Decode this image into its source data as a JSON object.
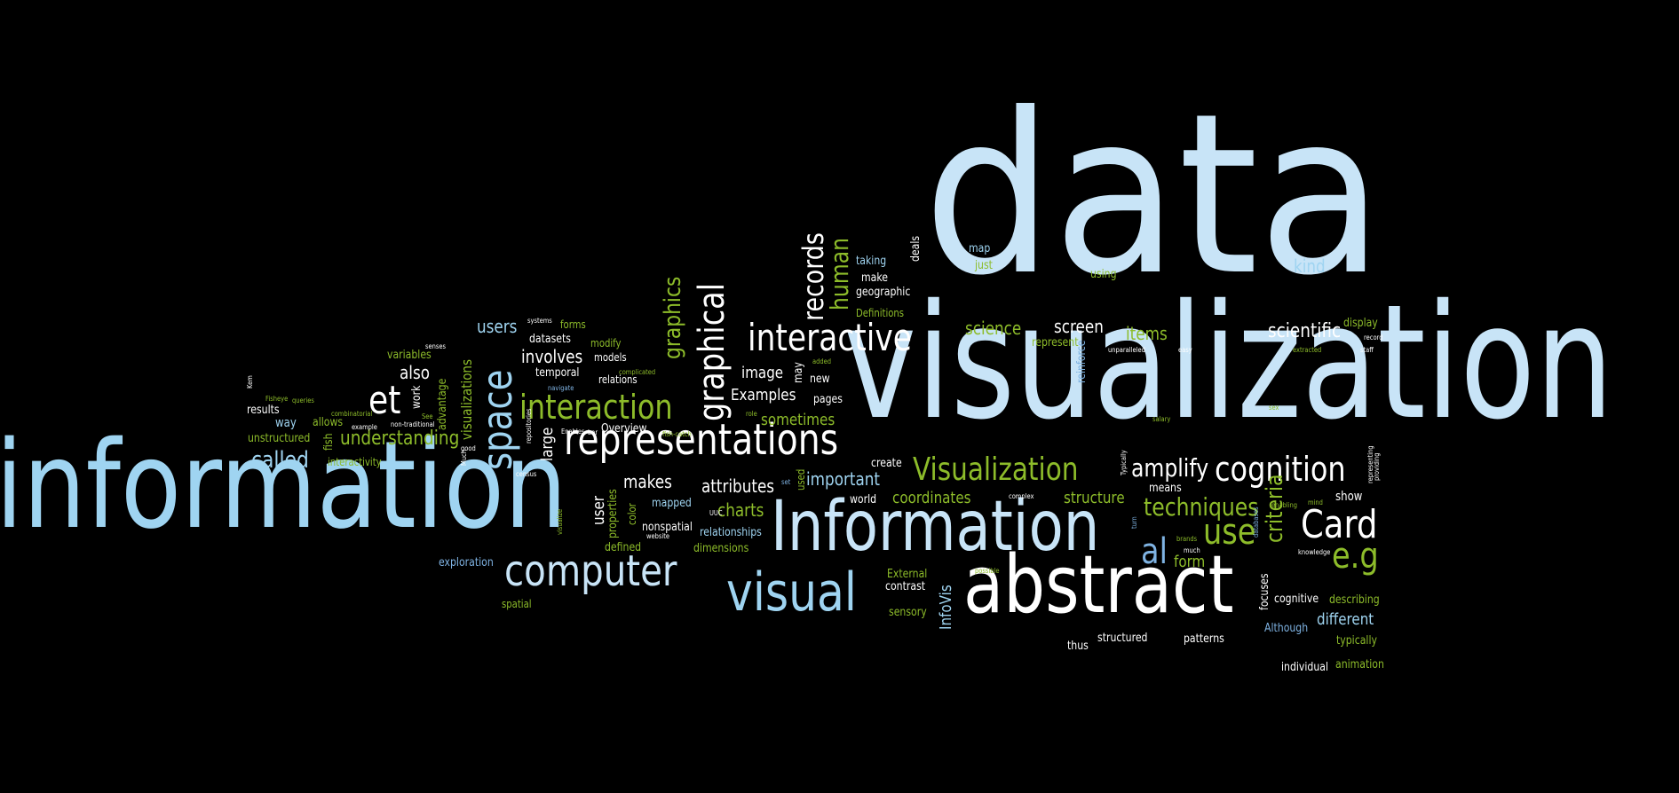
{
  "colors": {
    "background": "#000000",
    "pale_blue": "#c8e4f7",
    "sky_blue": "#9fd4f1",
    "white": "#ffffff",
    "green": "#8dbc2a",
    "steel_blue": "#7fb3e3"
  },
  "words": [
    "data",
    "visualization",
    "information",
    "abstract",
    "Information",
    "representations",
    "computer",
    "visual",
    "interactive",
    "interaction",
    "cognition",
    "Visualization",
    "Card",
    "space",
    "et",
    "graphical",
    "records",
    "human",
    "use",
    "e.g",
    "al",
    "techniques",
    "criteria",
    "amplify",
    "called",
    "understanding",
    "graphics",
    "items",
    "scientific",
    "screen",
    "science",
    "kind",
    "users",
    "involves",
    "also",
    "attributes",
    "makes",
    "sometimes",
    "important",
    "charts",
    "coordinates",
    "structure",
    "image",
    "Examples",
    "different",
    "show",
    "animation",
    "individual",
    "structured",
    "thus",
    "patterns",
    "Although",
    "typically",
    "describing",
    "cognitive",
    "focuses",
    "InfoVis",
    "sensory",
    "contrast",
    "External",
    "form",
    "means",
    "create",
    "world",
    "dimensions",
    "relationships",
    "mapped",
    "defined",
    "nonspatial",
    "exploration",
    "spatial",
    "user",
    "properties",
    "color",
    "large",
    "Overview",
    "temporal",
    "datasets",
    "models",
    "relations",
    "forms",
    "modify",
    "may",
    "new",
    "pages",
    "visualizations",
    "advantage",
    "work",
    "way",
    "allows",
    "results",
    "unstructured",
    "interactivity",
    "fish",
    "variables",
    "taking",
    "deals",
    "make",
    "geographic",
    "Definitions",
    "map",
    "just",
    "using",
    "represent",
    "display",
    "reinforce",
    "used",
    "salary",
    "record",
    "staff",
    "extracted",
    "easy",
    "unparalleled",
    "systems",
    "senses",
    "Kem",
    "Fisheye",
    "queries",
    "combinatorial",
    "non-traditional",
    "example",
    "See",
    "good",
    "Much",
    "census",
    "repositories",
    "Enables",
    "bar",
    "fish-catch",
    "navigate",
    "complicated",
    "role",
    "added",
    "website",
    "UUC",
    "visualize",
    "set",
    "complex",
    "possible",
    "brands",
    "much",
    "turn",
    "databases",
    "knowledge",
    "mind",
    "enabling",
    "Typically",
    "representing",
    "providing",
    "sex"
  ]
}
